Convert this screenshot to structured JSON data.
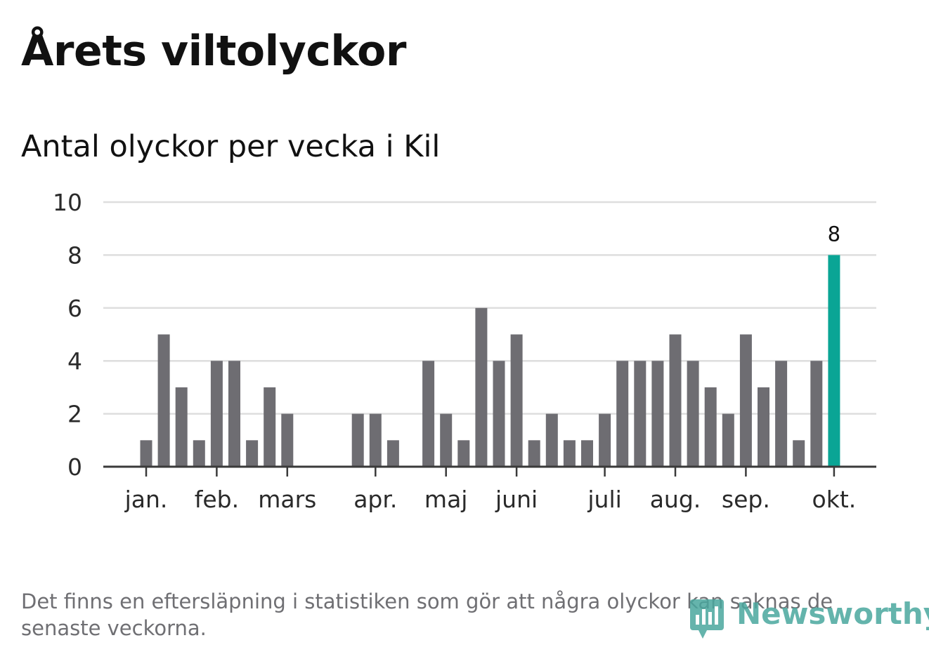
{
  "header": {
    "title": "Årets viltolyckor",
    "subtitle": "Antal olyckor per vecka i Kil"
  },
  "footer": {
    "note": "Det finns en eftersläpning i statistiken som gör att några olyckor kan saknas de senaste veckorna.",
    "brand": "Newsworthy"
  },
  "colors": {
    "bar": "#6e6d72",
    "highlight": "#0aa595",
    "grid": "#dedede",
    "axis": "#3a3a3a",
    "brand": "#4aa79e"
  },
  "chart_data": {
    "type": "bar",
    "title": "Antal olyckor per vecka i Kil",
    "xlabel": "",
    "ylabel": "",
    "ylim": [
      0,
      10
    ],
    "yticks": [
      0,
      2,
      4,
      6,
      8,
      10
    ],
    "grid": true,
    "weeks": [
      1,
      2,
      3,
      4,
      5,
      6,
      7,
      8,
      9,
      10,
      11,
      12,
      13,
      14,
      15,
      16,
      17,
      18,
      19,
      20,
      21,
      22,
      23,
      24,
      25,
      26,
      27,
      28,
      29,
      30,
      31,
      32,
      33,
      34,
      35,
      36,
      37,
      38,
      39,
      40
    ],
    "values": [
      1,
      5,
      3,
      1,
      4,
      4,
      1,
      3,
      2,
      0,
      0,
      0,
      2,
      2,
      1,
      0,
      4,
      2,
      1,
      6,
      4,
      5,
      1,
      2,
      1,
      1,
      2,
      4,
      4,
      4,
      5,
      4,
      3,
      2,
      5,
      3,
      4,
      1,
      4,
      8
    ],
    "highlight_index": 39,
    "highlight_label": "8",
    "x_month_labels": [
      {
        "label": "jan.",
        "week": 1
      },
      {
        "label": "feb.",
        "week": 5
      },
      {
        "label": "mars",
        "week": 9
      },
      {
        "label": "apr.",
        "week": 14
      },
      {
        "label": "maj",
        "week": 18
      },
      {
        "label": "juni",
        "week": 22
      },
      {
        "label": "juli",
        "week": 27
      },
      {
        "label": "aug.",
        "week": 31
      },
      {
        "label": "sep.",
        "week": 35
      },
      {
        "label": "okt.",
        "week": 40
      }
    ]
  }
}
